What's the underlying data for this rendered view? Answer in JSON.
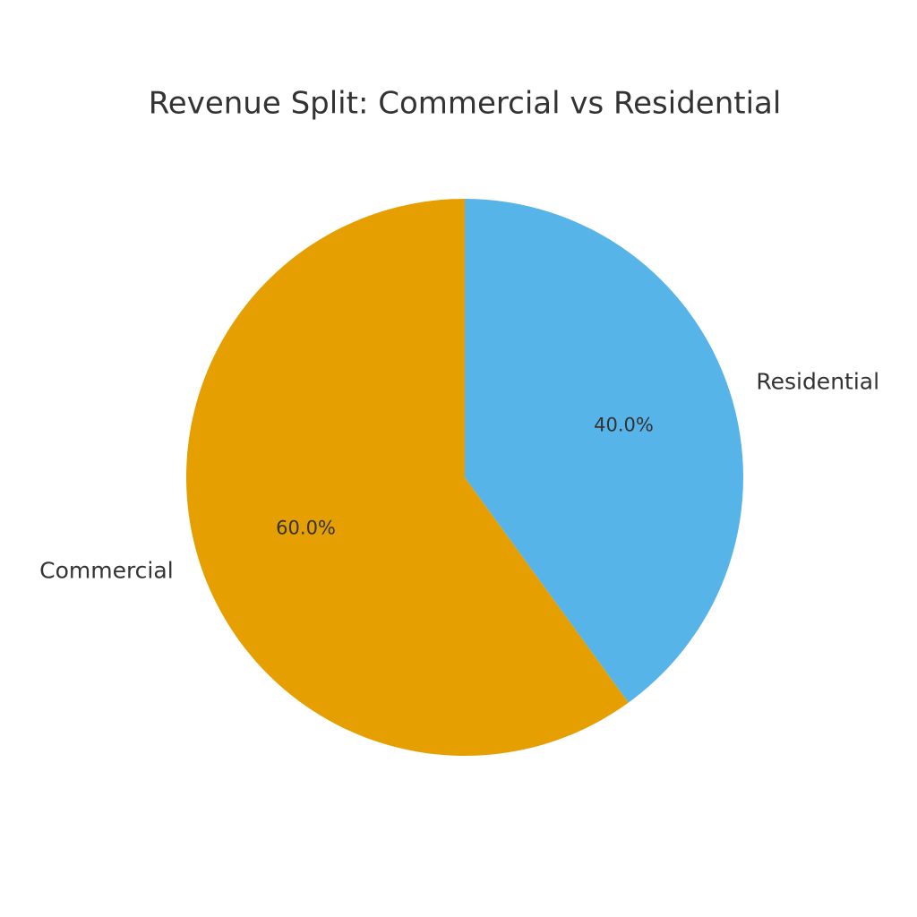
{
  "chart_data": {
    "type": "pie",
    "title": "Revenue Split: Commercial vs Residential",
    "categories": [
      "Commercial",
      "Residential"
    ],
    "values": [
      60,
      40
    ],
    "value_labels": [
      "60.0%",
      "40.0%"
    ],
    "colors": [
      "#e69f00",
      "#56b4e9"
    ]
  }
}
